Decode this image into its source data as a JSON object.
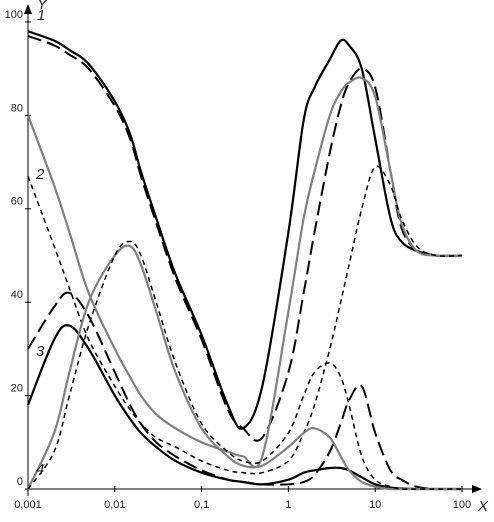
{
  "chart_data": {
    "type": "line",
    "x_label": "X",
    "y_label": "Y",
    "log_x": true,
    "xlim": [
      0.001,
      100
    ],
    "ylim": [
      0,
      100
    ],
    "xticks": [
      {
        "value": 0.001,
        "label": "0,001"
      },
      {
        "value": 0.01,
        "label": "0,01"
      },
      {
        "value": 0.1,
        "label": "0,1"
      },
      1,
      10,
      100
    ],
    "yticks": [
      0,
      20,
      40,
      60,
      80,
      100
    ],
    "annotations": [
      "1",
      "2",
      "3",
      "4"
    ],
    "x": [
      0.001,
      0.002,
      0.003,
      0.005,
      0.01,
      0.015,
      0.02,
      0.03,
      0.05,
      0.1,
      0.2,
      0.3,
      0.5,
      1,
      1.5,
      2,
      3,
      4,
      5,
      7,
      10,
      15,
      20,
      30,
      50,
      100
    ],
    "series": [
      {
        "color": "#000000",
        "style": "solid",
        "values": [
          98,
          96,
          94,
          91,
          83,
          76,
          68,
          58,
          46,
          33,
          18,
          13,
          22,
          55,
          79,
          86,
          92,
          96,
          95,
          90,
          75,
          58,
          53,
          51,
          50,
          50
        ]
      },
      {
        "color": "#000000",
        "style": "longdash",
        "values": [
          97,
          95,
          93,
          90,
          82,
          75,
          67,
          57,
          45,
          32,
          17,
          13,
          11,
          25,
          42,
          55,
          72,
          82,
          87,
          90,
          86,
          68,
          56,
          51,
          50,
          50
        ]
      },
      {
        "color": "#808080",
        "style": "solid",
        "values": [
          80,
          65,
          55,
          42,
          30,
          24,
          20,
          16,
          13,
          10,
          8,
          7,
          7,
          38,
          58,
          68,
          80,
          85,
          87,
          88,
          84,
          68,
          57,
          51,
          50,
          50
        ]
      },
      {
        "color": "#000000",
        "style": "shortdash",
        "values": [
          67,
          52,
          43,
          32,
          22,
          17,
          14,
          11,
          9,
          6,
          4,
          3.5,
          3.5,
          6,
          12,
          18,
          30,
          40,
          48,
          60,
          69,
          65,
          58,
          52,
          50,
          50
        ]
      },
      {
        "color": "#000000",
        "style": "solid",
        "values": [
          18,
          32,
          35,
          30,
          20,
          15,
          12,
          9,
          6,
          3.5,
          2,
          1.5,
          1,
          2,
          3.5,
          4,
          4.5,
          4.5,
          4,
          2.5,
          1,
          0.3,
          0.1,
          0,
          0,
          0
        ]
      },
      {
        "color": "#000000",
        "style": "longdash",
        "values": [
          30,
          39,
          42,
          37,
          25,
          18,
          14,
          10,
          7,
          4,
          2,
          1.5,
          1,
          1,
          1.5,
          3,
          8,
          14,
          19,
          22,
          12,
          4,
          2,
          0.5,
          0,
          0
        ]
      },
      {
        "color": "#808080",
        "style": "solid",
        "values": [
          0,
          12,
          25,
          40,
          50,
          52,
          48,
          38,
          25,
          13,
          7,
          5,
          5,
          9,
          12,
          13,
          11,
          7,
          4,
          1.5,
          0.5,
          0,
          0,
          0,
          0,
          0
        ]
      },
      {
        "color": "#000000",
        "style": "shortdash",
        "values": [
          0,
          8,
          20,
          35,
          50,
          53,
          50,
          40,
          27,
          14,
          8,
          6,
          6,
          12,
          20,
          25,
          27,
          24,
          18,
          7,
          2,
          0.5,
          0,
          0,
          0,
          0
        ]
      }
    ]
  }
}
